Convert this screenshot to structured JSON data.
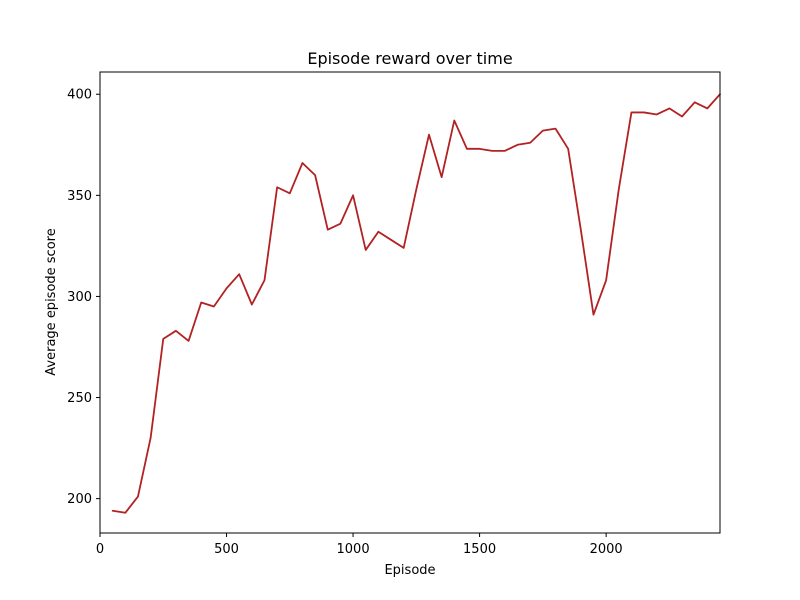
{
  "chart_data": {
    "type": "line",
    "title": "Episode reward over time",
    "xlabel": "Episode",
    "ylabel": "Average episode score",
    "xlim": [
      0,
      2450
    ],
    "ylim": [
      183,
      411
    ],
    "xticks": [
      0,
      500,
      1000,
      1500,
      2000
    ],
    "xtick_labels": [
      "0",
      "500",
      "1000",
      "1500",
      "2000"
    ],
    "yticks": [
      200,
      250,
      300,
      350,
      400
    ],
    "ytick_labels": [
      "200",
      "250",
      "300",
      "350",
      "400"
    ],
    "grid": false,
    "colors": {
      "line": "#b22222",
      "axis": "#000000",
      "background": "#ffffff"
    },
    "series": [
      {
        "x": [
          50,
          100,
          150,
          200,
          250,
          300,
          350,
          400,
          450,
          500,
          550,
          600,
          650,
          700,
          750,
          800,
          850,
          900,
          950,
          1000,
          1050,
          1100,
          1150,
          1200,
          1250,
          1300,
          1350,
          1400,
          1450,
          1500,
          1550,
          1600,
          1650,
          1700,
          1750,
          1800,
          1850,
          1900,
          1950,
          2000,
          2050,
          2100,
          2150,
          2200,
          2250,
          2300,
          2350,
          2400,
          2450
        ],
        "y": [
          194,
          193,
          201,
          230,
          279,
          283,
          278,
          297,
          295,
          304,
          311,
          296,
          308,
          354,
          351,
          366,
          360,
          333,
          336,
          350,
          323,
          332,
          328,
          324,
          353,
          380,
          359,
          387,
          373,
          373,
          372,
          372,
          375,
          376,
          382,
          383,
          373,
          333,
          291,
          308,
          353,
          391,
          391,
          390,
          393,
          389,
          396,
          393,
          400
        ]
      }
    ]
  }
}
